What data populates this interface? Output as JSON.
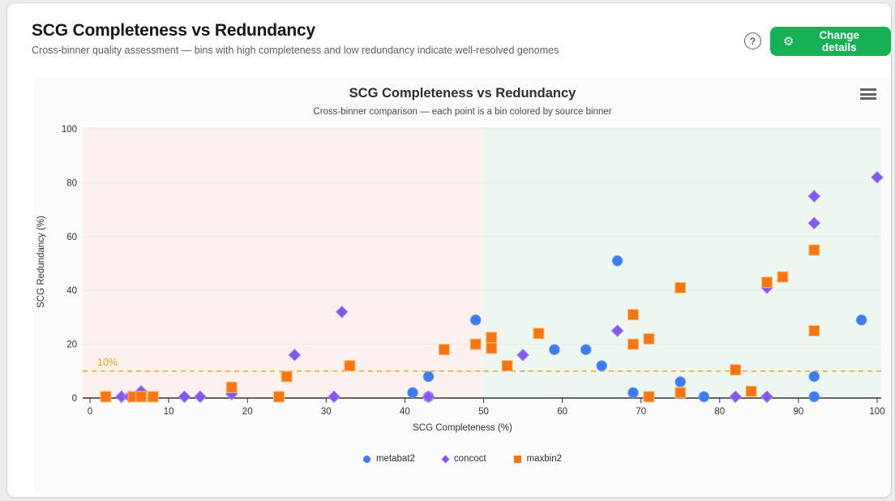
{
  "page": {
    "title": "SCG Completeness vs Redundancy",
    "subtitle": "Cross-binner quality assessment — bins with high completeness and low redundancy indicate well-resolved genomes",
    "help_icon": "?",
    "change_button": {
      "label": "Change details",
      "icon": "gear",
      "color": "#17b155"
    }
  },
  "chart_data": {
    "type": "scatter",
    "title": "SCG Completeness vs Redundancy",
    "subtitle": "Cross-binner comparison — each point is a bin colored by source binner",
    "xlabel": "SCG Completeness (%)",
    "ylabel": "SCG Redundancy (%)",
    "xlim": [
      0,
      100
    ],
    "ylim": [
      0,
      100
    ],
    "x_ticks": [
      0,
      10,
      20,
      30,
      40,
      50,
      60,
      70,
      80,
      90,
      100
    ],
    "y_ticks": [
      0,
      20,
      40,
      60,
      80,
      100
    ],
    "grid": true,
    "legend_position": "bottom",
    "threshold": {
      "y": 10,
      "label": "10%",
      "color": "#f0a713"
    },
    "zones": [
      {
        "from": 0,
        "to": 50,
        "color": "#fdf1ef",
        "meaning": "low-completeness region"
      },
      {
        "from": 50,
        "to": 100,
        "color": "#edf7f1",
        "meaning": "high-completeness region"
      }
    ],
    "series": [
      {
        "name": "metabat2",
        "marker": "circle",
        "color": "#3d7bf0",
        "stroke": "#6fa0f4",
        "points": [
          [
            41,
            2
          ],
          [
            43,
            0.5
          ],
          [
            43,
            8
          ],
          [
            49,
            29
          ],
          [
            59,
            18
          ],
          [
            63,
            18
          ],
          [
            65,
            12
          ],
          [
            67,
            51
          ],
          [
            69,
            2
          ],
          [
            75,
            6
          ],
          [
            78,
            0.5
          ],
          [
            92,
            0.5
          ],
          [
            92,
            8
          ],
          [
            98,
            29
          ]
        ]
      },
      {
        "name": "concoct",
        "marker": "diamond",
        "color": "#8458ef",
        "stroke": "#a98df5",
        "points": [
          [
            4,
            0.5
          ],
          [
            5,
            0.5
          ],
          [
            6.5,
            2.5
          ],
          [
            12,
            0.5
          ],
          [
            14,
            0.5
          ],
          [
            18,
            1.5
          ],
          [
            26,
            16
          ],
          [
            31,
            0.5
          ],
          [
            32,
            32
          ],
          [
            43,
            0.5
          ],
          [
            55,
            16
          ],
          [
            67,
            25
          ],
          [
            82,
            0.5
          ],
          [
            86,
            0.5
          ],
          [
            86,
            41
          ],
          [
            92,
            65
          ],
          [
            92,
            75
          ],
          [
            100,
            82
          ]
        ]
      },
      {
        "name": "maxbin2",
        "marker": "square",
        "color": "#f87514",
        "stroke": "#fbbf77",
        "points": [
          [
            2,
            0.5
          ],
          [
            5.5,
            0.5
          ],
          [
            6.5,
            0.5
          ],
          [
            8,
            0.5
          ],
          [
            18,
            4
          ],
          [
            24,
            0.5
          ],
          [
            25,
            8
          ],
          [
            33,
            12
          ],
          [
            45,
            18
          ],
          [
            49,
            20
          ],
          [
            51,
            18.5
          ],
          [
            51,
            22.5
          ],
          [
            53,
            12
          ],
          [
            57,
            24
          ],
          [
            69,
            20
          ],
          [
            69,
            31
          ],
          [
            71,
            0.5
          ],
          [
            71,
            22
          ],
          [
            75,
            2
          ],
          [
            75,
            41
          ],
          [
            82,
            10.5
          ],
          [
            84,
            2.5
          ],
          [
            86,
            43
          ],
          [
            88,
            45
          ],
          [
            92,
            25
          ],
          [
            92,
            55
          ]
        ]
      }
    ]
  }
}
